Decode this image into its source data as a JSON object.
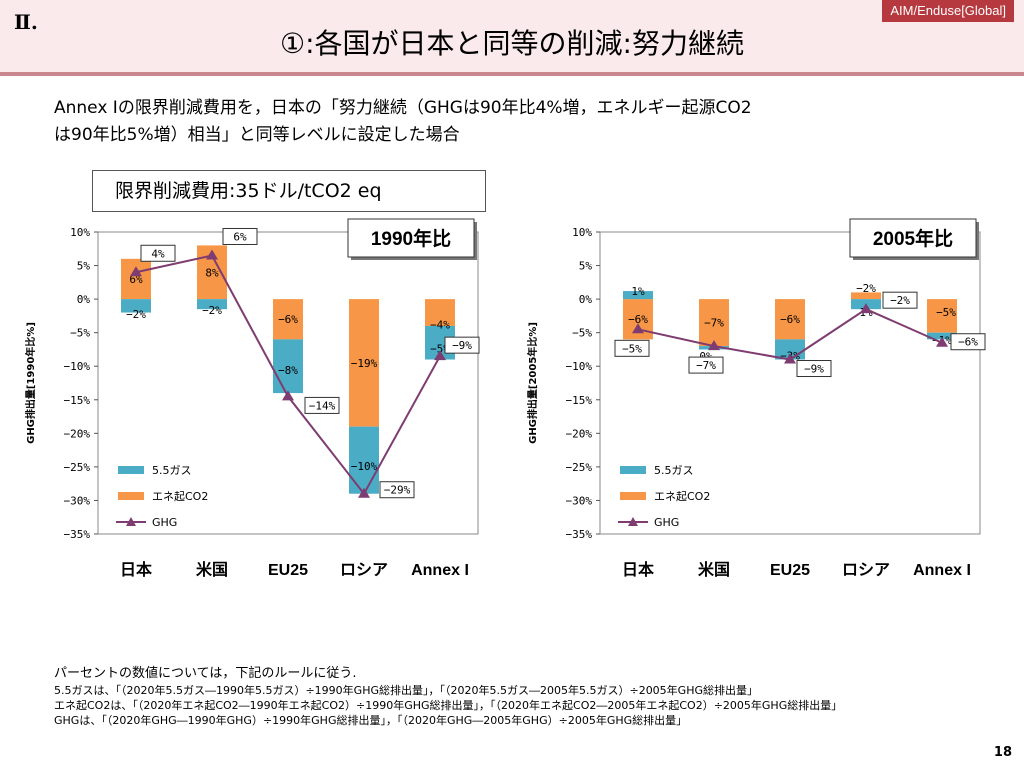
{
  "header": {
    "section": "Ⅱ.",
    "title": "①:各国が日本と同等の削減:努力継続",
    "tag": "AIM/Enduse[Global]"
  },
  "intro": {
    "line1": "Annex Iの限界削減費用を，日本の「努力継続（GHGは90年比4%増，エネルギー起源CO2",
    "line2": "は90年比5%増）相当」と同等レベルに設定した場合"
  },
  "cost_box": "限界削減費用:35ドル/tCO2 eq",
  "colors": {
    "gas": "#4bacc6",
    "co2": "#f79646",
    "ghg": "#7e3c70"
  },
  "chart_data": [
    {
      "type": "bar",
      "title": "1990年比",
      "ylabel": "GHG排出量[1990年比%]",
      "categories": [
        "日本",
        "米国",
        "EU25",
        "ロシア",
        "Annex I"
      ],
      "ylim": [
        -35,
        10
      ],
      "yticks": [
        "10%",
        "5%",
        "0%",
        "−5%",
        "−10%",
        "−15%",
        "−20%",
        "−25%",
        "−30%",
        "−35%"
      ],
      "series": [
        {
          "name": "5.5ガス",
          "values": [
            -2,
            -1.5,
            -8,
            -10,
            -5
          ],
          "labels": [
            "−2%",
            "−2%",
            "−8%",
            "−10%",
            "−5%"
          ]
        },
        {
          "name": "エネ起CO2",
          "values": [
            6,
            8,
            -6,
            -19,
            -4
          ],
          "labels": [
            "6%",
            "8%",
            "−6%",
            "−19%",
            "−4%"
          ]
        },
        {
          "name": "GHG",
          "values": [
            4,
            6.5,
            -14.5,
            -29,
            -8.5
          ],
          "labels": [
            "4%",
            "6%",
            "−14%",
            "−29%",
            "−9%"
          ]
        }
      ],
      "legend": "bottom-left"
    },
    {
      "type": "bar",
      "title": "2005年比",
      "ylabel": "GHG排出量[2005年比%]",
      "categories": [
        "日本",
        "米国",
        "EU25",
        "ロシア",
        "Annex I"
      ],
      "ylim": [
        -35,
        10
      ],
      "yticks": [
        "10%",
        "5%",
        "0%",
        "−5%",
        "−10%",
        "−15%",
        "−20%",
        "−25%",
        "−30%",
        "−35%"
      ],
      "series": [
        {
          "name": "5.5ガス",
          "values": [
            1.2,
            -0.5,
            -3,
            -1.5,
            -1
          ],
          "labels": [
            "1%",
            "0%",
            "−3%",
            "−2%",
            "−1%"
          ]
        },
        {
          "name": "エネ起CO2",
          "values": [
            -6,
            -7,
            -6,
            1,
            -5
          ],
          "labels": [
            "−6%",
            "−7%",
            "−6%",
            "1%",
            "−5%"
          ]
        },
        {
          "name": "GHG",
          "values": [
            -4.5,
            -7,
            -9,
            -1.5,
            -6.5
          ],
          "labels": [
            "−5%",
            "−7%",
            "−9%",
            "−2%",
            "−6%"
          ]
        }
      ],
      "legend": "bottom-left"
    }
  ],
  "notes": {
    "n0": "パーセントの数値については，下記のルールに従う.",
    "n1": "5.5ガスは、「（2020年5.5ガス―1990年5.5ガス）÷1990年GHG総排出量」，「（2020年5.5ガス―2005年5.5ガス）÷2005年GHG総排出量」",
    "n2": "エネ起CO2は、「（2020年エネ起CO2―1990年エネ起CO2）÷1990年GHG総排出量」，「（2020年エネ起CO2―2005年エネ起CO2）÷2005年GHG総排出量」",
    "n3": "GHGは、「（2020年GHG―1990年GHG）÷1990年GHG総排出量」，「（2020年GHG―2005年GHG）÷2005年GHG総排出量」"
  },
  "page_number": "18"
}
